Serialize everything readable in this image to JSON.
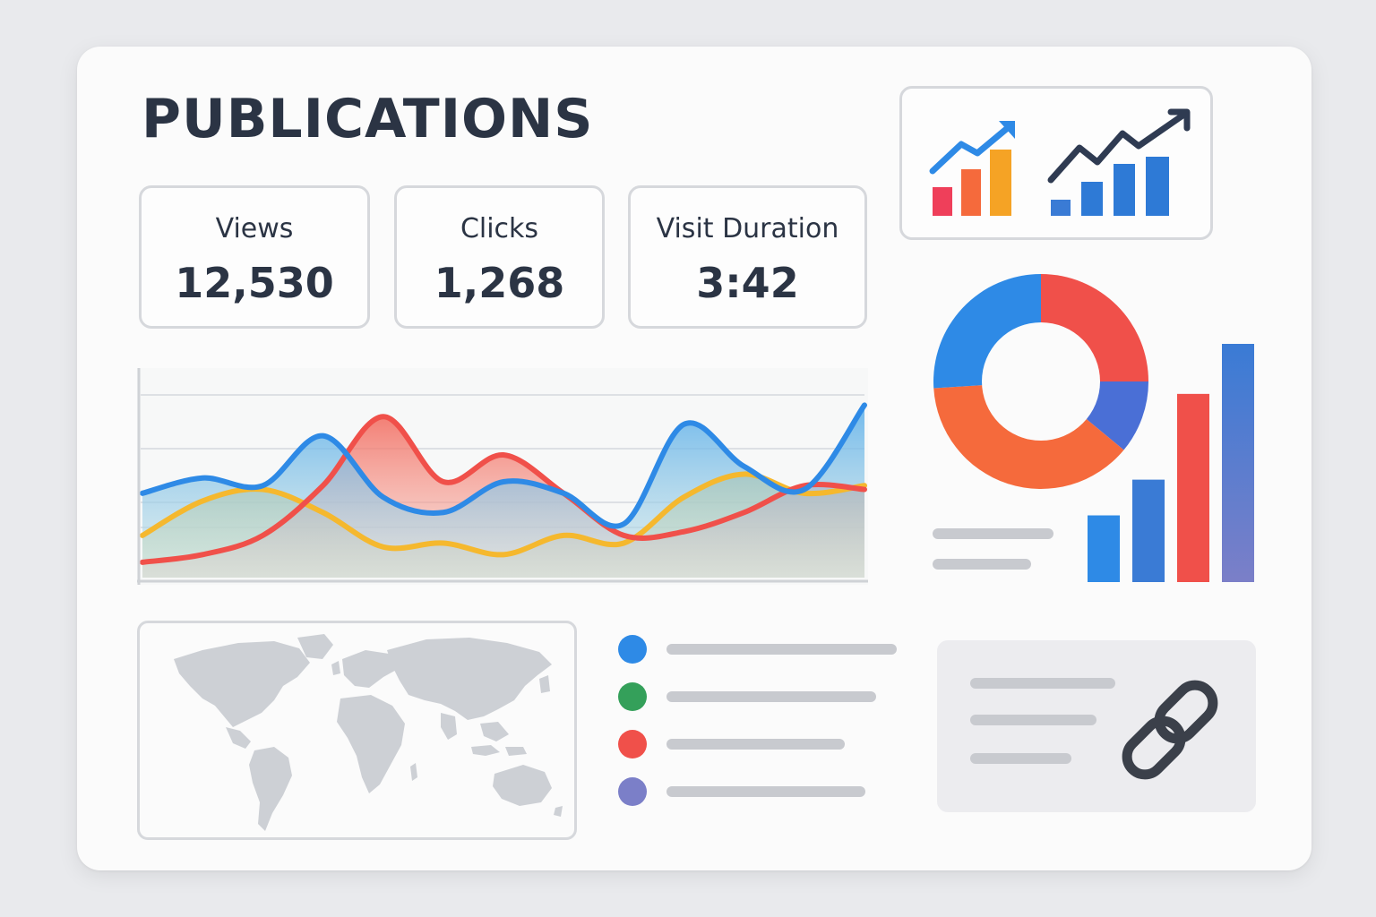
{
  "header": {
    "title": "PUBLICATIONS"
  },
  "stats": [
    {
      "label": "Views",
      "value": "12,530"
    },
    {
      "label": "Clicks",
      "value": "1,268"
    },
    {
      "label": "Visit Duration",
      "value": "3:42"
    }
  ],
  "icons": {
    "growth_chart_color": "growth-chart-icon",
    "growth_chart_blue": "growth-chart-icon",
    "map": "world-map-icon",
    "link": "link-icon"
  },
  "colors": {
    "blue": "#2e8ae6",
    "red": "#f0504a",
    "orange": "#f56a3c",
    "yellow": "#f5b82e",
    "green": "#34a05a",
    "purple": "#7b7fc8",
    "royal": "#4a6fd6",
    "text": "#2b3444"
  },
  "legend": {
    "dots": [
      "#2e8ae6",
      "#34a05a",
      "#f0504a",
      "#7b7fc8"
    ]
  },
  "chart_data": [
    {
      "type": "area",
      "series": [
        {
          "values": [
            44,
            52,
            48,
            74,
            42,
            34,
            50,
            44,
            28,
            80,
            58,
            46,
            90
          ]
        },
        {
          "values": [
            8,
            12,
            22,
            48,
            84,
            50,
            64,
            44,
            22,
            24,
            34,
            48,
            46
          ]
        },
        {
          "values": [
            22,
            40,
            46,
            34,
            16,
            18,
            12,
            22,
            18,
            42,
            54,
            44,
            48
          ]
        }
      ]
    },
    {
      "type": "pie",
      "values": [
        25,
        11,
        38,
        26
      ]
    },
    {
      "type": "bar",
      "values": [
        28,
        43,
        79,
        100
      ]
    }
  ]
}
